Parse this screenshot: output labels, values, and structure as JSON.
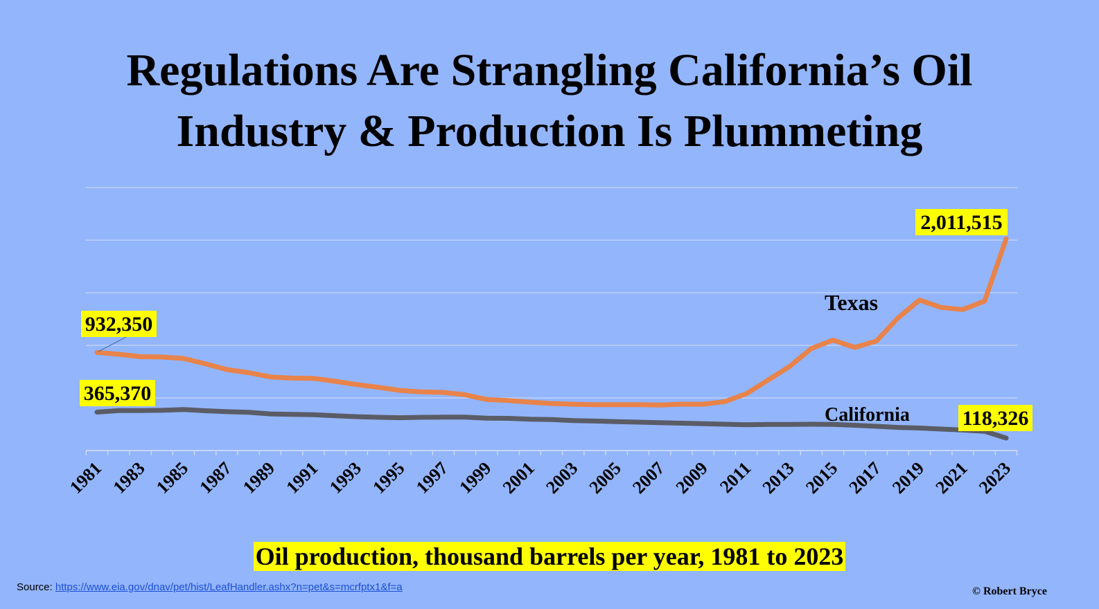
{
  "title": [
    "Regulations Are Strangling California’s Oil",
    "Industry & Production Is Plummeting"
  ],
  "subtitle": "Oil production, thousand barrels per year, 1981 to 2023",
  "source": {
    "prefix": "Source:",
    "url": "https://www.eia.gov/dnav/pet/hist/LeafHandler.ashx?n=pet&s=mcrfptx1&f=a"
  },
  "credit": "© Robert Bryce",
  "colors": {
    "background": "#93b5fc",
    "texas": "#e8834a",
    "california": "#5a5c66",
    "highlight": "#ffff00",
    "grid": "#d6e1f8"
  },
  "chart_data": {
    "type": "line",
    "x": [
      1981,
      1982,
      1983,
      1984,
      1985,
      1986,
      1987,
      1988,
      1989,
      1990,
      1991,
      1992,
      1993,
      1994,
      1995,
      1996,
      1997,
      1998,
      1999,
      2000,
      2001,
      2002,
      2003,
      2004,
      2005,
      2006,
      2007,
      2008,
      2009,
      2010,
      2011,
      2012,
      2013,
      2014,
      2015,
      2016,
      2017,
      2018,
      2019,
      2020,
      2021,
      2022,
      2023
    ],
    "xticks": [
      "1981",
      "1983",
      "1985",
      "1987",
      "1989",
      "1991",
      "1993",
      "1995",
      "1997",
      "1999",
      "2001",
      "2003",
      "2005",
      "2007",
      "2009",
      "2011",
      "2013",
      "2015",
      "2017",
      "2019",
      "2021",
      "2023"
    ],
    "ylim": [
      0,
      2500000
    ],
    "grid": true,
    "series": [
      {
        "name": "Texas",
        "color": "#e8834a",
        "values": [
          932350,
          915000,
          892000,
          889000,
          875000,
          825000,
          770000,
          740000,
          700000,
          688000,
          686000,
          658000,
          627000,
          601000,
          571000,
          557000,
          552000,
          530000,
          485000,
          475000,
          460000,
          447000,
          440000,
          436000,
          436000,
          436000,
          432000,
          441000,
          440000,
          465000,
          540000,
          670000,
          800000,
          970000,
          1050000,
          980000,
          1040000,
          1260000,
          1430000,
          1360000,
          1340000,
          1420000,
          2011515
        ]
      },
      {
        "name": "California",
        "color": "#5a5c66",
        "values": [
          365370,
          380000,
          380000,
          382000,
          390000,
          378000,
          369000,
          364000,
          348000,
          344000,
          341000,
          330000,
          322000,
          316000,
          312000,
          316000,
          317000,
          317000,
          308000,
          306000,
          298000,
          295000,
          285000,
          280000,
          275000,
          270000,
          265000,
          260000,
          255000,
          250000,
          245000,
          248000,
          248000,
          250000,
          248000,
          240000,
          230000,
          220000,
          214000,
          204000,
          195000,
          183000,
          118326
        ]
      }
    ],
    "annotations": [
      {
        "text": "932,350",
        "series": "Texas",
        "x": 1981
      },
      {
        "text": "365,370",
        "series": "California",
        "x": 1981
      },
      {
        "text": "2,011,515",
        "series": "Texas",
        "x": 2023
      },
      {
        "text": "118,326",
        "series": "California",
        "x": 2023
      }
    ]
  }
}
